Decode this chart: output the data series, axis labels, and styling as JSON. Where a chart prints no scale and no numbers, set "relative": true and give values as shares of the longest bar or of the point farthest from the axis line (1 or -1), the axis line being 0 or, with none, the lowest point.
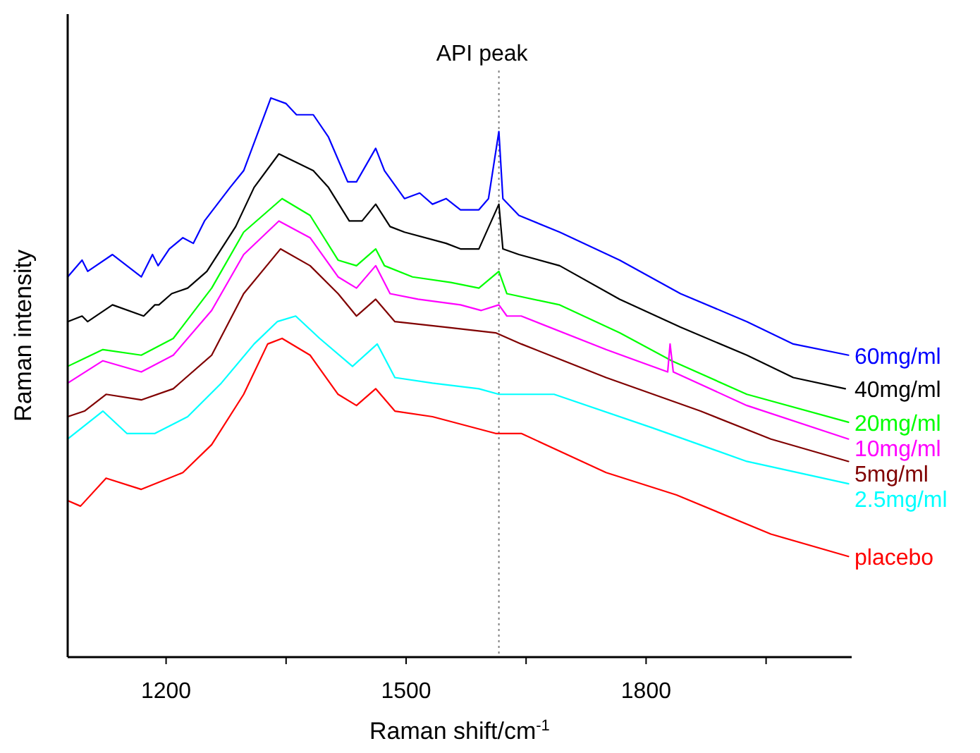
{
  "chart_data": {
    "type": "line",
    "xlabel": "Raman shift/cm$^{-1}$",
    "ylabel": "Raman intensity",
    "relative": true,
    "xlim": [
      1077,
      2057
    ],
    "xticks": [
      1200,
      {
        "value": 1350,
        "label": null
      },
      1500,
      {
        "value": 1650,
        "label": null
      },
      1800,
      {
        "value": 1950,
        "label": null
      }
    ],
    "ref_lines": [
      {
        "axis": "x",
        "value": 1616,
        "label": "API peak",
        "color": "#808080",
        "line_style": "dotted"
      }
    ],
    "line_style": "solid",
    "series": [
      {
        "name": "60mg/ml",
        "color": "#0000ff",
        "x": [
          1077,
          1095,
          1102,
          1133,
          1169,
          1183,
          1190,
          1204,
          1221,
          1234,
          1248,
          1280,
          1297,
          1331,
          1350,
          1363,
          1384,
          1403,
          1427,
          1438,
          1462,
          1473,
          1498,
          1517,
          1533,
          1550,
          1568,
          1591,
          1603,
          1616,
          1621,
          1641,
          1692,
          1767,
          1843,
          1926,
          1984,
          2053
        ],
        "values": [
          0.68,
          0.71,
          0.69,
          0.72,
          0.68,
          0.72,
          0.7,
          0.73,
          0.75,
          0.74,
          0.78,
          0.84,
          0.87,
          1.0,
          0.99,
          0.97,
          0.97,
          0.93,
          0.85,
          0.85,
          0.91,
          0.87,
          0.82,
          0.83,
          0.81,
          0.82,
          0.8,
          0.8,
          0.82,
          0.94,
          0.82,
          0.79,
          0.76,
          0.71,
          0.65,
          0.6,
          0.56,
          0.54
        ]
      },
      {
        "name": "40mg/ml",
        "color": "#000000",
        "x": [
          1077,
          1095,
          1102,
          1133,
          1172,
          1186,
          1191,
          1207,
          1227,
          1251,
          1287,
          1310,
          1341,
          1384,
          1403,
          1429,
          1445,
          1462,
          1480,
          1498,
          1550,
          1568,
          1591,
          1616,
          1621,
          1641,
          1692,
          1767,
          1843,
          1926,
          1984,
          2049
        ],
        "values": [
          0.6,
          0.61,
          0.6,
          0.63,
          0.61,
          0.63,
          0.63,
          0.65,
          0.66,
          0.69,
          0.77,
          0.84,
          0.9,
          0.87,
          0.84,
          0.78,
          0.78,
          0.81,
          0.77,
          0.76,
          0.74,
          0.73,
          0.73,
          0.81,
          0.73,
          0.72,
          0.7,
          0.64,
          0.59,
          0.54,
          0.5,
          0.48
        ]
      },
      {
        "name": "20mg/ml",
        "color": "#00ff00",
        "x": [
          1077,
          1121,
          1169,
          1209,
          1257,
          1297,
          1345,
          1380,
          1415,
          1438,
          1462,
          1473,
          1508,
          1556,
          1591,
          1616,
          1626,
          1692,
          1767,
          1832,
          1926,
          2053
        ],
        "values": [
          0.52,
          0.55,
          0.54,
          0.57,
          0.66,
          0.76,
          0.82,
          0.79,
          0.71,
          0.7,
          0.73,
          0.7,
          0.68,
          0.67,
          0.66,
          0.69,
          0.65,
          0.63,
          0.58,
          0.53,
          0.47,
          0.42
        ]
      },
      {
        "name": "10mg/ml",
        "color": "#ff00ff",
        "x": [
          1077,
          1121,
          1169,
          1209,
          1257,
          1297,
          1341,
          1380,
          1415,
          1438,
          1462,
          1480,
          1515,
          1568,
          1594,
          1616,
          1626,
          1644,
          1750,
          1827,
          1830,
          1834,
          1926,
          2053
        ],
        "values": [
          0.49,
          0.53,
          0.51,
          0.54,
          0.62,
          0.72,
          0.78,
          0.75,
          0.68,
          0.66,
          0.7,
          0.65,
          0.64,
          0.63,
          0.62,
          0.63,
          0.61,
          0.61,
          0.55,
          0.51,
          0.56,
          0.51,
          0.45,
          0.39
        ]
      },
      {
        "name": "5mg/ml",
        "color": "#800000",
        "x": [
          1077,
          1098,
          1125,
          1169,
          1209,
          1257,
          1297,
          1343,
          1380,
          1415,
          1438,
          1462,
          1486,
          1550,
          1612,
          1644,
          1750,
          1868,
          1956,
          2053
        ],
        "values": [
          0.43,
          0.44,
          0.47,
          0.46,
          0.48,
          0.54,
          0.65,
          0.73,
          0.7,
          0.65,
          0.61,
          0.64,
          0.6,
          0.59,
          0.58,
          0.56,
          0.5,
          0.44,
          0.39,
          0.35
        ]
      },
      {
        "name": "2.5mg/ml",
        "color": "#00ffff",
        "x": [
          1077,
          1121,
          1151,
          1186,
          1227,
          1269,
          1310,
          1339,
          1362,
          1392,
          1433,
          1464,
          1486,
          1533,
          1591,
          1616,
          1685,
          1808,
          1926,
          2053
        ],
        "values": [
          0.39,
          0.44,
          0.4,
          0.4,
          0.43,
          0.49,
          0.56,
          0.6,
          0.61,
          0.57,
          0.52,
          0.56,
          0.5,
          0.49,
          0.48,
          0.47,
          0.47,
          0.41,
          0.35,
          0.31
        ]
      },
      {
        "name": "placebo",
        "color": "#ff0000",
        "x": [
          1077,
          1093,
          1125,
          1169,
          1221,
          1257,
          1297,
          1327,
          1345,
          1380,
          1415,
          1438,
          1462,
          1486,
          1533,
          1612,
          1644,
          1750,
          1838,
          1956,
          2053
        ],
        "values": [
          0.28,
          0.27,
          0.32,
          0.3,
          0.33,
          0.38,
          0.47,
          0.56,
          0.57,
          0.54,
          0.47,
          0.45,
          0.48,
          0.44,
          0.43,
          0.4,
          0.4,
          0.33,
          0.29,
          0.22,
          0.18
        ]
      }
    ]
  }
}
